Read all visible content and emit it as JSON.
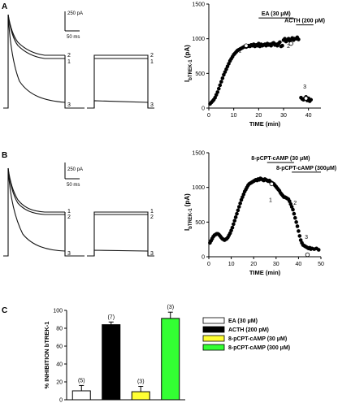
{
  "panels": {
    "A": "A",
    "B": "B",
    "C": "C"
  },
  "scalebars": {
    "A": {
      "amp": "250 pA",
      "time": "50 ms"
    },
    "B": {
      "amp": "250 pA",
      "time": "50 ms"
    }
  },
  "trace_labels": {
    "A_left": [
      "2",
      "1",
      "3"
    ],
    "A_right": [
      "2",
      "1",
      "3"
    ],
    "B_left": [
      "1",
      "2",
      "3"
    ],
    "B_right": [
      "1",
      "2",
      "3"
    ]
  },
  "chart_data": [
    {
      "id": "A",
      "type": "scatter",
      "title": "",
      "xlabel": "TIME (min)",
      "ylabel_main": "I",
      "ylabel_sub": "bTREK-1",
      "ylabel_unit": "(pA)",
      "xlim": [
        0,
        45
      ],
      "ylim": [
        0,
        1500
      ],
      "xticks": [
        0,
        10,
        20,
        30,
        40
      ],
      "yticks": [
        0,
        500,
        1000,
        1500
      ],
      "series": [
        {
          "x": [
            0.5,
            1,
            1.5,
            2,
            2.5,
            3,
            3.5,
            4,
            4.5,
            5,
            5.5,
            6,
            6.5,
            7,
            7.5,
            8,
            8.5,
            9,
            9.5,
            10,
            10.5,
            11,
            11.5,
            12,
            12.5,
            13,
            13.5,
            14,
            14.5,
            15,
            15.5,
            16,
            16.5,
            17,
            17.5,
            18,
            18.5,
            19,
            19.5,
            20,
            20.5,
            21,
            21.5,
            22,
            22.5,
            23,
            23.5,
            24,
            24.5,
            25,
            25.5,
            26,
            26.5,
            27,
            27.5,
            28,
            28.5,
            29,
            29.5,
            30,
            30.5,
            31,
            31.5,
            32,
            32.5,
            33,
            33.5,
            34,
            34.5,
            35,
            35.5,
            36,
            37,
            37.5,
            38,
            38.5,
            39,
            39.5,
            40,
            40.5,
            41
          ],
          "y": [
            60,
            80,
            100,
            120,
            150,
            190,
            230,
            280,
            330,
            380,
            430,
            480,
            520,
            560,
            600,
            640,
            680,
            710,
            740,
            770,
            790,
            810,
            830,
            840,
            850,
            860,
            870,
            880,
            890,
            880,
            890,
            900,
            890,
            910,
            900,
            920,
            890,
            910,
            900,
            930,
            890,
            920,
            900,
            910,
            920,
            900,
            930,
            910,
            920,
            900,
            930,
            940,
            910,
            920,
            900,
            930,
            950,
            890,
            900,
            980,
            1000,
            960,
            980,
            1000,
            970,
            990,
            1010,
            980,
            1000,
            1000,
            1020,
            990,
            150,
            130,
            120,
            140,
            160,
            110,
            140,
            100,
            120
          ],
          "open_x": [
            15,
            33,
            39
          ],
          "open_y": [
            900,
            930,
            140
          ]
        }
      ],
      "labels": [
        {
          "text": "1",
          "x": 12.5,
          "y": 800
        },
        {
          "text": "2",
          "x": 32,
          "y": 870
        },
        {
          "text": "3",
          "x": 38.5,
          "y": 280
        }
      ],
      "bars": [
        {
          "label": "EA (30 μM)",
          "x_start": 20,
          "x_end": 34,
          "y": 1300
        },
        {
          "label": "ACTH (200 pM)",
          "x_start": 35,
          "x_end": 42,
          "y": 1200
        }
      ]
    },
    {
      "id": "B",
      "type": "scatter",
      "title": "",
      "xlabel": "TIME (min)",
      "ylabel_main": "I",
      "ylabel_sub": "bTREK-1",
      "ylabel_unit": "(pA)",
      "xlim": [
        0,
        50
      ],
      "ylim": [
        0,
        1500
      ],
      "xticks": [
        0,
        10,
        20,
        30,
        40,
        50
      ],
      "yticks": [
        0,
        500,
        1000,
        1500
      ],
      "series": [
        {
          "x": [
            0.5,
            1,
            1.5,
            2,
            2.5,
            3,
            3.5,
            4,
            4.5,
            5,
            5.5,
            6,
            6.5,
            7,
            7.5,
            8,
            8.5,
            9,
            9.5,
            10,
            10.5,
            11,
            11.5,
            12,
            12.5,
            13,
            13.5,
            14,
            14.5,
            15,
            15.5,
            16,
            16.5,
            17,
            17.5,
            18,
            18.5,
            19,
            19.5,
            20,
            20.5,
            21,
            21.5,
            22,
            22.5,
            23,
            23.5,
            24,
            24.5,
            25,
            25.5,
            26,
            26.5,
            27,
            27.5,
            28,
            28.5,
            29,
            29.5,
            30,
            30.5,
            31,
            31.5,
            32,
            32.5,
            33,
            33.5,
            34,
            34.5,
            35,
            35.5,
            36,
            36.5,
            37,
            37.5,
            38,
            38.5,
            39,
            39.5,
            40,
            40.5,
            41,
            41.5,
            42,
            42.5,
            43,
            43.5,
            44,
            44.5,
            45,
            45.5,
            46,
            47,
            48,
            49
          ],
          "y": [
            200,
            230,
            260,
            290,
            310,
            320,
            330,
            330,
            320,
            300,
            280,
            260,
            250,
            240,
            250,
            260,
            280,
            310,
            340,
            380,
            420,
            470,
            520,
            570,
            620,
            670,
            720,
            770,
            820,
            860,
            900,
            940,
            970,
            1000,
            1030,
            1050,
            1060,
            1070,
            1080,
            1090,
            1100,
            1110,
            1100,
            1120,
            1110,
            1130,
            1120,
            1110,
            1100,
            1120,
            1110,
            1100,
            1090,
            1100,
            1080,
            1070,
            1060,
            1050,
            1030,
            1010,
            990,
            970,
            950,
            920,
            900,
            880,
            860,
            860,
            850,
            840,
            830,
            800,
            760,
            720,
            680,
            620,
            560,
            500,
            440,
            370,
            300,
            240,
            200,
            170,
            160,
            150,
            140,
            130,
            120,
            130,
            110,
            120,
            110,
            120,
            100
          ],
          "open_x": [
            28,
            44
          ],
          "open_y": [
            1050,
            30
          ]
        }
      ],
      "labels": [
        {
          "text": "1",
          "x": 27.5,
          "y": 790
        },
        {
          "text": "2",
          "x": 38.5,
          "y": 750
        },
        {
          "text": "3",
          "x": 43.5,
          "y": 260
        }
      ],
      "bars": [
        {
          "label": "8-pCPT-cAMP (30 μM)",
          "x_start": 26,
          "x_end": 38,
          "y": 1360
        },
        {
          "label": "8-pCPT-cAMP (300μM)",
          "x_start": 37,
          "x_end": 50,
          "y": 1220
        }
      ]
    },
    {
      "id": "C",
      "type": "bar",
      "title": "",
      "ylabel": "% INHIBITION  bTREK-1",
      "ylim": [
        0,
        100
      ],
      "yticks": [
        0,
        20,
        40,
        60,
        80,
        100
      ],
      "categories": [
        "EA (30 μM)",
        "ACTH (200 pM)",
        "8-pCPT-cAMP (30 μM)",
        "8-pCPT-cAMP (300 μM)"
      ],
      "values": [
        10,
        84,
        9,
        91
      ],
      "errors": [
        6,
        3,
        6,
        7
      ],
      "n_labels": [
        "(5)",
        "(7)",
        "(3)",
        "(3)"
      ],
      "colors": [
        "#ffffff",
        "#000000",
        "#ffff33",
        "#33ff33"
      ],
      "legend_position": "right"
    }
  ]
}
